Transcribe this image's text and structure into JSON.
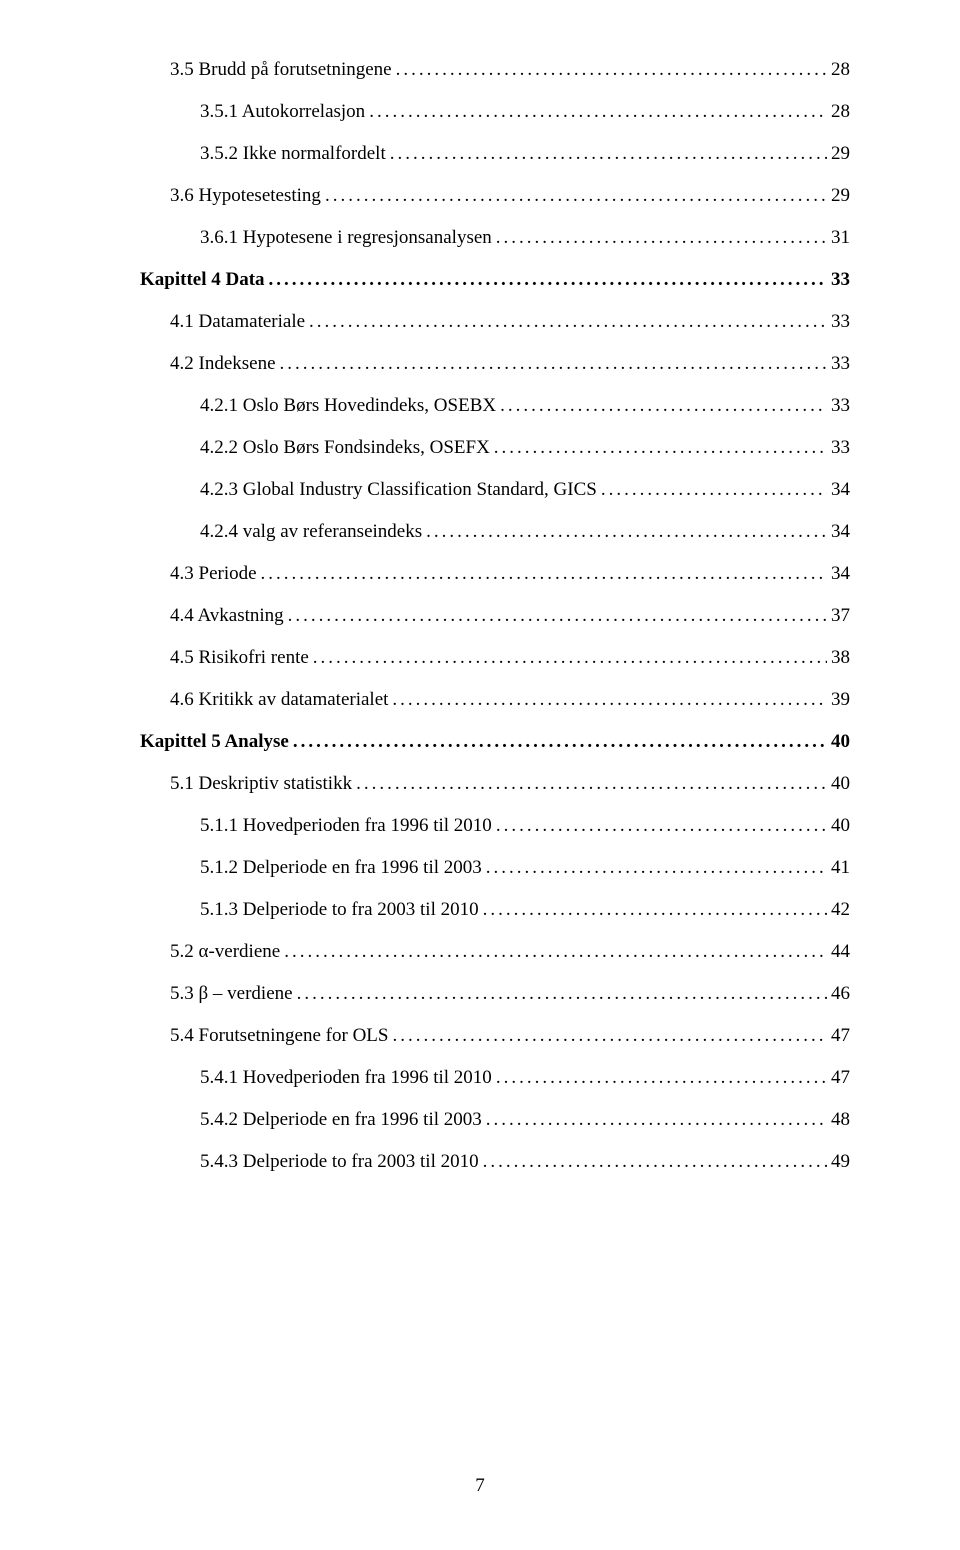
{
  "toc": [
    {
      "label": "3.5 Brudd på forutsetningene",
      "page": "28",
      "level": 2,
      "bold": false
    },
    {
      "label": "3.5.1 Autokorrelasjon",
      "page": "28",
      "level": 3,
      "bold": false
    },
    {
      "label": "3.5.2 Ikke normalfordelt",
      "page": "29",
      "level": 3,
      "bold": false
    },
    {
      "label": "3.6 Hypotesetesting",
      "page": "29",
      "level": 2,
      "bold": false
    },
    {
      "label": "3.6.1 Hypotesene i regresjonsanalysen",
      "page": "31",
      "level": 3,
      "bold": false
    },
    {
      "label": "Kapittel 4 Data",
      "page": "33",
      "level": 1,
      "bold": true
    },
    {
      "label": "4.1 Datamateriale",
      "page": "33",
      "level": 2,
      "bold": false
    },
    {
      "label": "4.2 Indeksene",
      "page": "33",
      "level": 2,
      "bold": false
    },
    {
      "label": "4.2.1 Oslo Børs Hovedindeks, OSEBX",
      "page": "33",
      "level": 3,
      "bold": false
    },
    {
      "label": "4.2.2 Oslo Børs Fondsindeks, OSEFX",
      "page": "33",
      "level": 3,
      "bold": false
    },
    {
      "label": "4.2.3 Global Industry Classification Standard, GICS",
      "page": "34",
      "level": 3,
      "bold": false
    },
    {
      "label": "4.2.4 valg av referanseindeks",
      "page": "34",
      "level": 3,
      "bold": false
    },
    {
      "label": "4.3 Periode",
      "page": "34",
      "level": 2,
      "bold": false
    },
    {
      "label": "4.4 Avkastning",
      "page": "37",
      "level": 2,
      "bold": false
    },
    {
      "label": "4.5 Risikofri rente",
      "page": "38",
      "level": 2,
      "bold": false
    },
    {
      "label": "4.6 Kritikk av datamaterialet",
      "page": "39",
      "level": 2,
      "bold": false
    },
    {
      "label": "Kapittel 5 Analyse",
      "page": "40",
      "level": 1,
      "bold": true
    },
    {
      "label": "5.1 Deskriptiv statistikk",
      "page": "40",
      "level": 2,
      "bold": false
    },
    {
      "label": "5.1.1 Hovedperioden fra 1996 til 2010",
      "page": "40",
      "level": 3,
      "bold": false
    },
    {
      "label": "5.1.2 Delperiode en fra 1996 til 2003",
      "page": "41",
      "level": 3,
      "bold": false
    },
    {
      "label": "5.1.3 Delperiode to fra 2003 til 2010",
      "page": "42",
      "level": 3,
      "bold": false
    },
    {
      "label": "5.2 α-verdiene",
      "page": "44",
      "level": 2,
      "bold": false
    },
    {
      "label": "5.3 β – verdiene",
      "page": "46",
      "level": 2,
      "bold": false
    },
    {
      "label": "5.4 Forutsetningene for OLS",
      "page": "47",
      "level": 2,
      "bold": false
    },
    {
      "label": "5.4.1 Hovedperioden fra 1996 til 2010",
      "page": "47",
      "level": 3,
      "bold": false
    },
    {
      "label": "5.4.2 Delperiode en fra 1996 til 2003",
      "page": "48",
      "level": 3,
      "bold": false
    },
    {
      "label": "5.4.3 Delperiode to fra 2003 til 2010",
      "page": "49",
      "level": 3,
      "bold": false
    }
  ],
  "page_number": "7"
}
